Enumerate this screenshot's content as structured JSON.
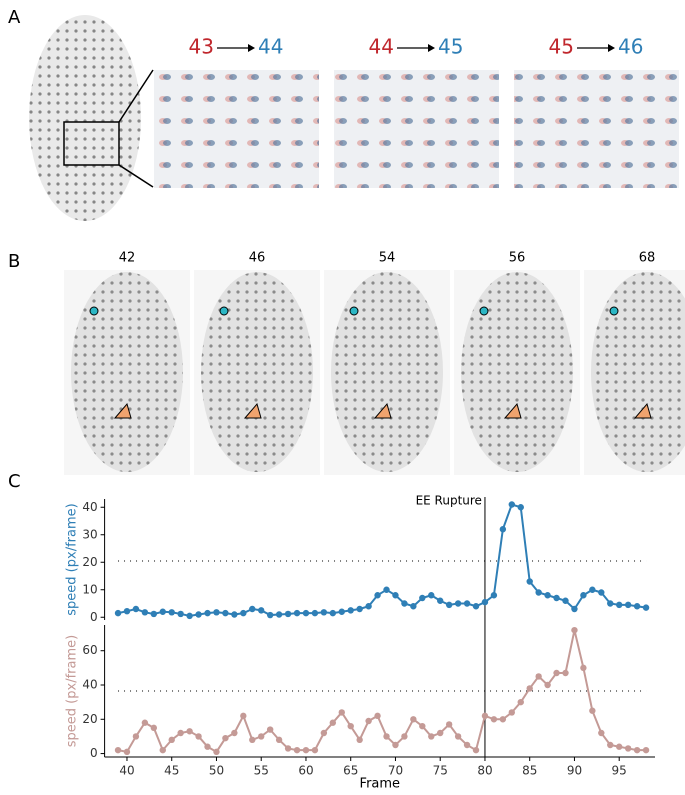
{
  "panels": {
    "labels": [
      "A",
      "B",
      "C"
    ]
  },
  "panel_a": {
    "transitions": [
      {
        "from": "43",
        "to": "44"
      },
      {
        "from": "44",
        "to": "45"
      },
      {
        "from": "45",
        "to": "46"
      }
    ]
  },
  "panel_b": {
    "frames": [
      "42",
      "46",
      "54",
      "56",
      "68"
    ]
  },
  "chart_data": [
    {
      "type": "line",
      "ylabel": "speed (px/frame)",
      "x": [
        39,
        40,
        41,
        42,
        43,
        44,
        45,
        46,
        47,
        48,
        49,
        50,
        51,
        52,
        53,
        54,
        55,
        56,
        57,
        58,
        59,
        60,
        61,
        62,
        63,
        64,
        65,
        66,
        67,
        68,
        69,
        70,
        71,
        72,
        73,
        74,
        75,
        76,
        77,
        78,
        79,
        80,
        81,
        82,
        83,
        84,
        85,
        86,
        87,
        88,
        89,
        90,
        91,
        92,
        93,
        94,
        95,
        96,
        97,
        98
      ],
      "series": [
        {
          "name": "speed",
          "color": "#2f7fb6",
          "values": [
            1.5,
            2.2,
            3,
            1.8,
            1.2,
            2,
            1.8,
            1.2,
            0.5,
            1,
            1.5,
            1.8,
            1.5,
            1,
            1.5,
            3,
            2.5,
            0.8,
            1,
            1.2,
            1.5,
            1.5,
            1.5,
            1.8,
            1.5,
            2,
            2.5,
            3,
            4,
            8,
            10,
            8,
            5,
            4,
            7,
            8,
            6,
            4.5,
            5,
            5,
            4,
            5.5,
            8,
            32,
            41,
            40,
            13,
            9,
            8,
            7,
            6,
            3,
            8,
            10,
            9,
            5,
            4.5,
            4.5,
            4,
            3.5
          ]
        }
      ],
      "xlim": [
        37.5,
        99
      ],
      "ylim": [
        -1,
        43
      ],
      "yticks": [
        0,
        10,
        20,
        30,
        40
      ],
      "annotations": [
        {
          "text": "EE Rupture",
          "x": 80
        }
      ]
    },
    {
      "type": "line",
      "ylabel": "speed (px/frame)",
      "xlabel": "Frame",
      "x": [
        39,
        40,
        41,
        42,
        43,
        44,
        45,
        46,
        47,
        48,
        49,
        50,
        51,
        52,
        53,
        54,
        55,
        56,
        57,
        58,
        59,
        60,
        61,
        62,
        63,
        64,
        65,
        66,
        67,
        68,
        69,
        70,
        71,
        72,
        73,
        74,
        75,
        76,
        77,
        78,
        79,
        80,
        81,
        82,
        83,
        84,
        85,
        86,
        87,
        88,
        89,
        90,
        91,
        92,
        93,
        94,
        95,
        96,
        97,
        98
      ],
      "series": [
        {
          "name": "speed",
          "color": "#c49a96",
          "values": [
            2,
            1,
            10,
            18,
            15,
            2,
            8,
            12,
            13,
            10,
            4,
            1,
            9,
            12,
            22,
            8,
            10,
            14,
            8,
            3,
            2,
            2,
            2,
            12,
            18,
            24,
            16,
            8,
            19,
            22,
            10,
            5,
            10,
            20,
            16,
            10,
            12,
            17,
            10,
            5,
            2,
            22,
            20,
            20,
            24,
            30,
            38,
            45,
            40,
            47,
            47,
            72,
            50,
            25,
            12,
            5,
            4,
            3,
            2,
            2
          ]
        }
      ],
      "xlim": [
        37.5,
        99
      ],
      "ylim": [
        -2,
        75
      ],
      "yticks": [
        0,
        20,
        40,
        60
      ],
      "xticks": [
        40,
        45,
        50,
        55,
        60,
        65,
        70,
        75,
        80,
        85,
        90,
        95
      ]
    }
  ]
}
